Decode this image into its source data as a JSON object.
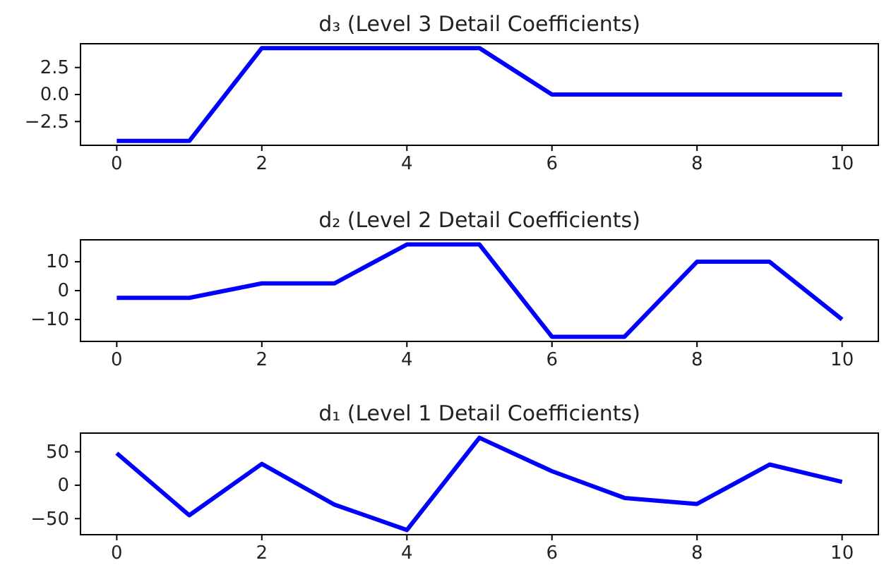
{
  "chart_data": [
    {
      "type": "line",
      "title": "d₃ (Level 3 Detail Coefficients)",
      "x": [
        0,
        1,
        2,
        3,
        4,
        5,
        6,
        7,
        8,
        9,
        10
      ],
      "series": [
        {
          "color": "#0000ff",
          "values": [
            -4.3,
            -4.3,
            4.3,
            4.3,
            4.3,
            4.3,
            0,
            0,
            0,
            0,
            0
          ]
        }
      ],
      "xlim": [
        -0.5,
        10.5
      ],
      "xticks": [
        0,
        2,
        4,
        6,
        8,
        10
      ],
      "ylim": [
        -4.7,
        4.7
      ],
      "yticks": [
        {
          "value": -2.5,
          "label": "−2.5"
        },
        {
          "value": 0,
          "label": "0.0"
        },
        2.5
      ],
      "grid": false,
      "marker": "none",
      "line_style": "solid"
    },
    {
      "type": "line",
      "title": "d₂ (Level 2 Detail Coefficients)",
      "x": [
        0,
        1,
        2,
        3,
        4,
        5,
        6,
        7,
        8,
        9,
        10
      ],
      "series": [
        {
          "color": "#0000ff",
          "values": [
            -2.5,
            -2.5,
            2.5,
            2.5,
            16,
            16,
            -16,
            -16,
            10,
            10,
            -10
          ]
        }
      ],
      "xlim": [
        -0.5,
        10.5
      ],
      "xticks": [
        0,
        2,
        4,
        6,
        8,
        10
      ],
      "ylim": [
        -17.6,
        17.6
      ],
      "yticks": [
        {
          "value": -10,
          "label": "−10"
        },
        0,
        10
      ],
      "grid": false,
      "marker": "none",
      "line_style": "solid"
    },
    {
      "type": "line",
      "title": "d₁ (Level 1 Detail Coefficients)",
      "x": [
        0,
        1,
        2,
        3,
        4,
        5,
        6,
        7,
        8,
        9,
        10
      ],
      "series": [
        {
          "color": "#0000ff",
          "values": [
            48,
            -45,
            32,
            -29,
            -67,
            71,
            21,
            -19,
            -28,
            31,
            5
          ]
        }
      ],
      "xlim": [
        -0.5,
        10.5
      ],
      "xticks": [
        0,
        2,
        4,
        6,
        8,
        10
      ],
      "ylim": [
        -74,
        78
      ],
      "yticks": [
        {
          "value": -50,
          "label": "−50"
        },
        0,
        50
      ],
      "grid": false,
      "marker": "none",
      "line_style": "solid"
    }
  ]
}
